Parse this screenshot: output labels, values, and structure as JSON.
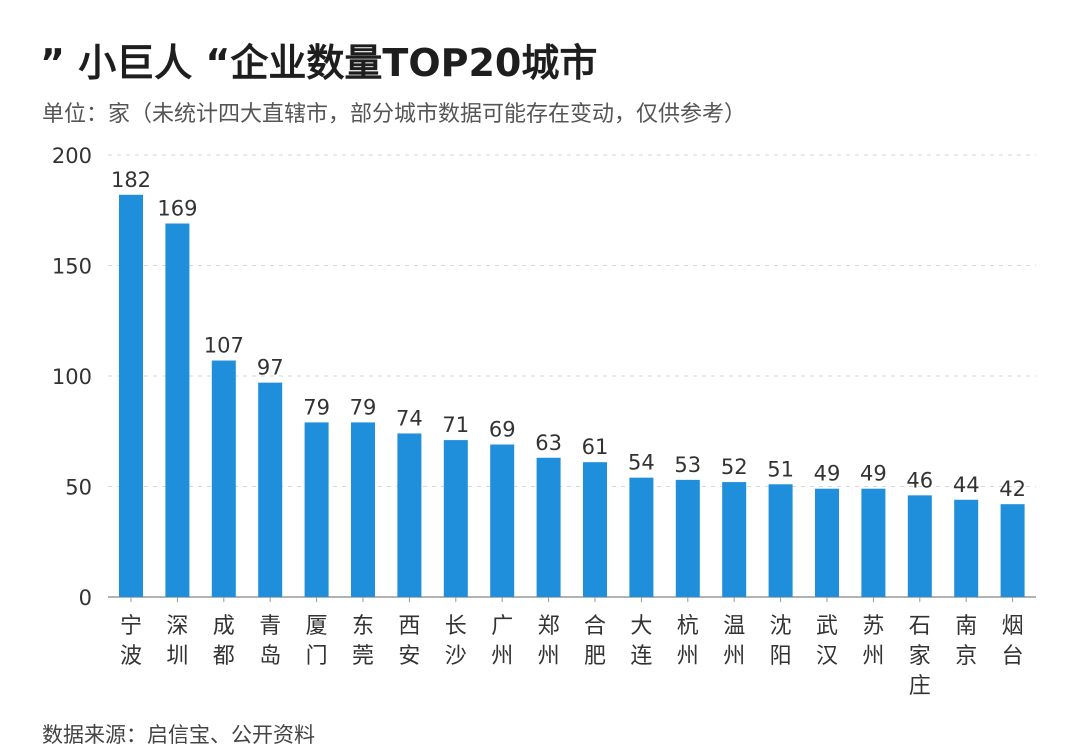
{
  "title": "” 小巨人 “企业数量TOP20城市",
  "subtitle": "单位：家（未统计四大直辖市，部分城市数据可能存在变动，仅供参考）",
  "source": "数据来源：启信宝、公开资料",
  "chart_data": {
    "type": "bar",
    "title": "” 小巨人 “企业数量TOP20城市",
    "ylabel": "",
    "xlabel": "",
    "ylim": [
      0,
      200
    ],
    "yticks": [
      0,
      50,
      100,
      150,
      200
    ],
    "grid": true,
    "bar_color": "#1f8fdc",
    "categories": [
      "宁波",
      "深圳",
      "成都",
      "青岛",
      "厦门",
      "东莞",
      "西安",
      "长沙",
      "广州",
      "郑州",
      "合肥",
      "大连",
      "杭州",
      "温州",
      "沈阳",
      "武汉",
      "苏州",
      "石家庄",
      "南京",
      "烟台"
    ],
    "values": [
      182,
      169,
      107,
      97,
      79,
      79,
      74,
      71,
      69,
      63,
      61,
      54,
      53,
      52,
      51,
      49,
      49,
      46,
      44,
      42
    ]
  }
}
